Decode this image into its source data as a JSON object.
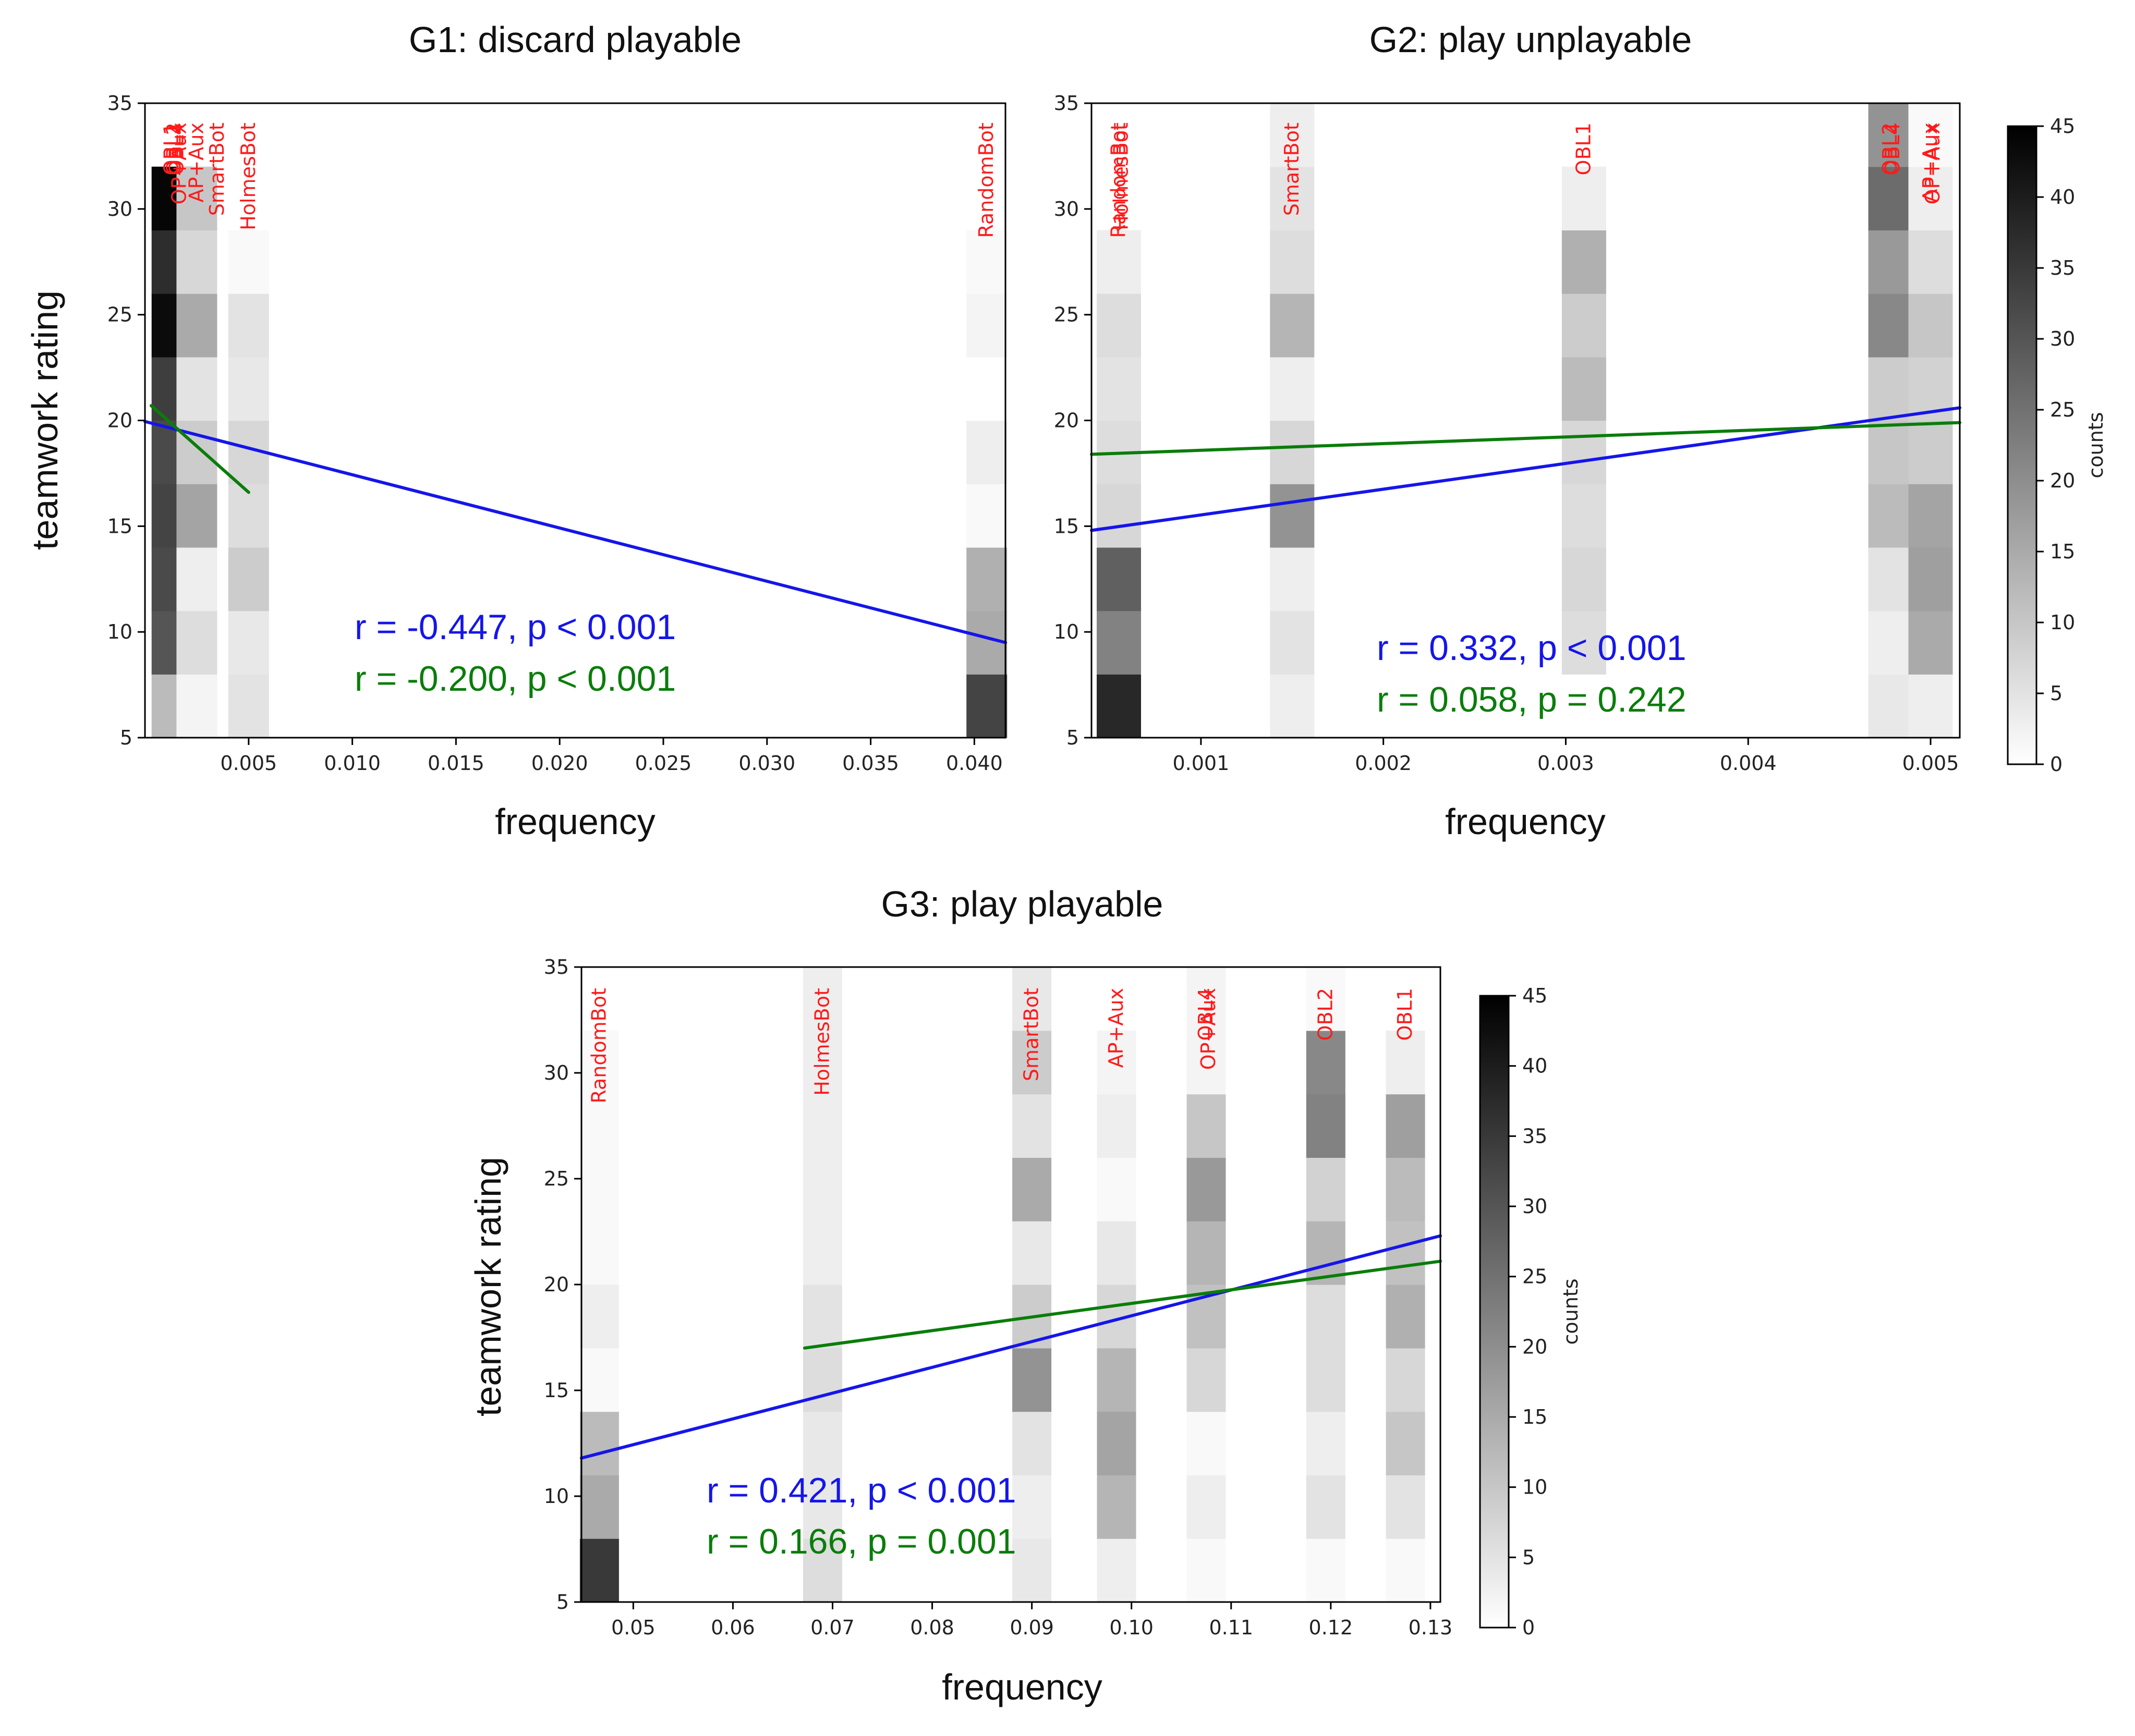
{
  "chart_data": [
    {
      "type": "heatmap",
      "title": "G1: discard playable",
      "xlabel": "frequency",
      "ylabel": "teamwork rating",
      "xlim": [
        0.0,
        0.0415
      ],
      "ylim": [
        5,
        35
      ],
      "xticks": [
        "0.005",
        "0.010",
        "0.015",
        "0.020",
        "0.025",
        "0.030",
        "0.035",
        "0.040"
      ],
      "yticks": [
        "5",
        "10",
        "15",
        "20",
        "25",
        "30",
        "35"
      ],
      "bin_height": 3,
      "columns": [
        {
          "x": 0.0013,
          "label": "OBL1",
          "counts": [
            12,
            30,
            32,
            33,
            32,
            34,
            43,
            37,
            44
          ]
        },
        {
          "x": 0.0013,
          "label": "OBL2",
          "counts": []
        },
        {
          "x": 0.0013,
          "label": "OBL4",
          "counts": []
        },
        {
          "x": 0.0013,
          "label": "OP+Aux",
          "counts": []
        },
        {
          "x": 0.0025,
          "label": "AP+Aux",
          "counts": [
            2,
            6,
            3,
            16,
            9,
            5,
            15,
            7,
            10
          ]
        },
        {
          "x": 0.0035,
          "label": "SmartBot",
          "counts": []
        },
        {
          "x": 0.005,
          "label": "HolmesBot",
          "counts": [
            5,
            4,
            9,
            6,
            7,
            4,
            5,
            1
          ]
        },
        {
          "x": 0.0406,
          "label": "RandomBot",
          "counts": [
            33,
            15,
            14,
            1,
            3,
            0,
            2,
            1
          ]
        }
      ],
      "fits": [
        {
          "color": "#1515ea",
          "x": [
            0.0,
            0.0415
          ],
          "y": [
            19.95,
            9.5
          ],
          "stat": "r = -0.447, p < 0.001"
        },
        {
          "color": "#0a7d0a",
          "x": [
            0.0003,
            0.005
          ],
          "y": [
            20.7,
            16.6
          ],
          "stat": "r = -0.200, p < 0.001"
        }
      ]
    },
    {
      "type": "heatmap",
      "title": "G2: play unplayable",
      "xlabel": "frequency",
      "ylabel": "",
      "xlim": [
        0.0004,
        0.00516
      ],
      "ylim": [
        5,
        35
      ],
      "xticks": [
        "0.001",
        "0.002",
        "0.003",
        "0.004",
        "0.005"
      ],
      "yticks": [
        "5",
        "10",
        "15",
        "20",
        "25",
        "30",
        "35"
      ],
      "bin_height": 3,
      "columns": [
        {
          "x": 0.00055,
          "label": "RandomBot",
          "counts": [
            38,
            22,
            28,
            7,
            6,
            5,
            6,
            3
          ]
        },
        {
          "x": 0.00055,
          "label": "HolmesBot",
          "counts": []
        },
        {
          "x": 0.0015,
          "label": "SmartBot",
          "counts": [
            3,
            5,
            3,
            19,
            7,
            3,
            13,
            6,
            5,
            3
          ]
        },
        {
          "x": 0.0031,
          "label": "OBL1",
          "counts": [
            0,
            6,
            7,
            6,
            7,
            12,
            9,
            14,
            3
          ]
        },
        {
          "x": 0.00478,
          "label": "OBL2",
          "counts": [
            4,
            3,
            5,
            12,
            10,
            9,
            21,
            18,
            26,
            19
          ]
        },
        {
          "x": 0.00478,
          "label": "OBL4",
          "counts": []
        },
        {
          "x": 0.005,
          "label": "AP+Aux",
          "counts": [
            3,
            15,
            17,
            16,
            9,
            8,
            10,
            6,
            3,
            1
          ]
        },
        {
          "x": 0.005,
          "label": "OP+Aux",
          "counts": []
        }
      ],
      "fits": [
        {
          "color": "#1515ea",
          "x": [
            0.0004,
            0.00516
          ],
          "y": [
            14.8,
            20.6
          ],
          "stat": "r = 0.332, p < 0.001"
        },
        {
          "color": "#0a7d0a",
          "x": [
            0.0004,
            0.00516
          ],
          "y": [
            18.4,
            19.9
          ],
          "stat": "r = 0.058, p = 0.242"
        }
      ]
    },
    {
      "type": "heatmap",
      "title": "G3: play playable",
      "xlabel": "frequency",
      "ylabel": "teamwork rating",
      "xlim": [
        0.0448,
        0.131
      ],
      "ylim": [
        5,
        35
      ],
      "xticks": [
        "0.05",
        "0.06",
        "0.07",
        "0.08",
        "0.09",
        "0.10",
        "0.11",
        "0.12",
        "0.13"
      ],
      "yticks": [
        "5",
        "10",
        "15",
        "20",
        "25",
        "30",
        "35"
      ],
      "bin_height": 3,
      "columns": [
        {
          "x": 0.0466,
          "label": "RandomBot",
          "counts": [
            35,
            15,
            12,
            1,
            3,
            1,
            1,
            1,
            1
          ]
        },
        {
          "x": 0.069,
          "label": "HolmesBot",
          "counts": [
            6,
            4,
            4,
            6,
            5,
            3,
            3,
            3,
            3,
            3
          ]
        },
        {
          "x": 0.09,
          "label": "SmartBot",
          "counts": [
            4,
            3,
            5,
            19,
            9,
            4,
            15,
            5,
            9,
            4
          ]
        },
        {
          "x": 0.0985,
          "label": "AP+Aux",
          "counts": [
            3,
            13,
            16,
            13,
            7,
            4,
            1,
            3,
            2
          ]
        },
        {
          "x": 0.1075,
          "label": "OBL4",
          "counts": [
            1,
            3,
            1,
            7,
            11,
            13,
            18,
            10,
            2,
            2
          ]
        },
        {
          "x": 0.1075,
          "label": "OP+Aux",
          "counts": []
        },
        {
          "x": 0.1195,
          "label": "OBL2",
          "counts": [
            1,
            5,
            3,
            6,
            6,
            13,
            8,
            22,
            21,
            1
          ]
        },
        {
          "x": 0.1275,
          "label": "OBL1",
          "counts": [
            1,
            5,
            10,
            7,
            14,
            11,
            12,
            17,
            3
          ]
        }
      ],
      "fits": [
        {
          "color": "#1515ea",
          "x": [
            0.0448,
            0.131
          ],
          "y": [
            11.8,
            22.3
          ],
          "stat": "r = 0.421, p < 0.001"
        },
        {
          "color": "#0a7d0a",
          "x": [
            0.0672,
            0.131
          ],
          "y": [
            17.0,
            21.1
          ],
          "stat": "r = 0.166, p = 0.001"
        }
      ]
    }
  ],
  "colorbar": {
    "label": "counts",
    "min": 0,
    "max": 45,
    "ticks": [
      "0",
      "5",
      "10",
      "15",
      "20",
      "25",
      "30",
      "35",
      "40",
      "45"
    ]
  },
  "colors": {
    "label_red": "#ff1a1a",
    "fit_blue": "#1515ea",
    "fit_green": "#0a7d0a"
  }
}
